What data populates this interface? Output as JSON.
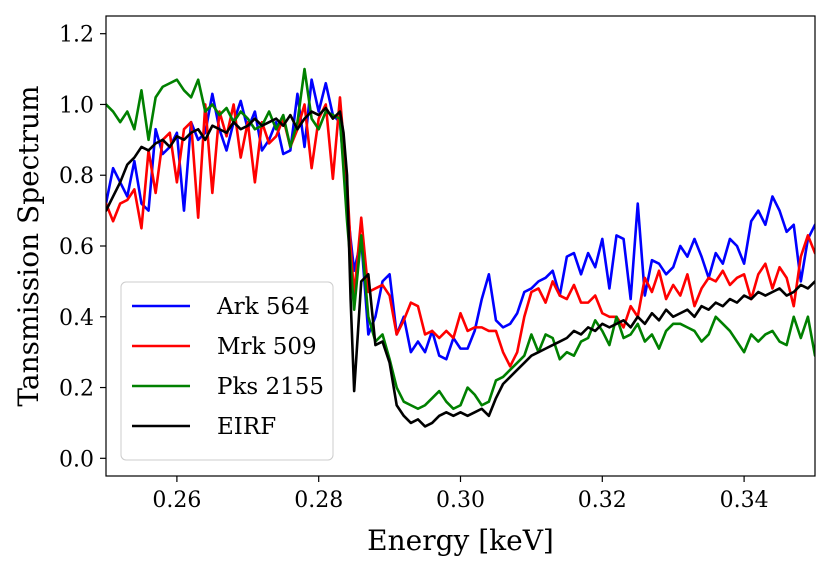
{
  "chart_data": {
    "type": "line",
    "title": "",
    "xlabel": "Energy [keV]",
    "ylabel": "Tansmission Spectrum",
    "xlim": [
      0.25,
      0.35
    ],
    "ylim": [
      -0.05,
      1.25
    ],
    "xticks": [
      0.26,
      0.28,
      0.3,
      0.32,
      0.34
    ],
    "xtick_labels": [
      "0.26",
      "0.28",
      "0.30",
      "0.32",
      "0.34"
    ],
    "yticks": [
      0.0,
      0.2,
      0.4,
      0.6,
      0.8,
      1.0,
      1.2
    ],
    "ytick_labels": [
      "0.0",
      "0.2",
      "0.4",
      "0.6",
      "0.8",
      "1.0",
      "1.2"
    ],
    "legend_position": "lower-left",
    "series": [
      {
        "name": "Ark 564",
        "color": "#0000ff",
        "x": [
          0.25,
          0.251,
          0.252,
          0.253,
          0.254,
          0.255,
          0.256,
          0.257,
          0.258,
          0.259,
          0.26,
          0.261,
          0.262,
          0.263,
          0.264,
          0.265,
          0.266,
          0.267,
          0.268,
          0.269,
          0.27,
          0.271,
          0.272,
          0.273,
          0.274,
          0.275,
          0.276,
          0.277,
          0.278,
          0.279,
          0.28,
          0.281,
          0.282,
          0.283,
          0.284,
          0.2845,
          0.285,
          0.286,
          0.287,
          0.288,
          0.289,
          0.29,
          0.291,
          0.292,
          0.293,
          0.294,
          0.295,
          0.296,
          0.297,
          0.298,
          0.299,
          0.3,
          0.301,
          0.302,
          0.303,
          0.304,
          0.305,
          0.306,
          0.307,
          0.308,
          0.309,
          0.31,
          0.311,
          0.312,
          0.313,
          0.314,
          0.315,
          0.316,
          0.317,
          0.318,
          0.319,
          0.32,
          0.321,
          0.322,
          0.323,
          0.324,
          0.325,
          0.326,
          0.327,
          0.328,
          0.329,
          0.33,
          0.331,
          0.332,
          0.333,
          0.334,
          0.335,
          0.336,
          0.337,
          0.338,
          0.339,
          0.34,
          0.341,
          0.342,
          0.343,
          0.344,
          0.345,
          0.346,
          0.347,
          0.348,
          0.349,
          0.35
        ],
        "y": [
          0.72,
          0.82,
          0.78,
          0.74,
          0.84,
          0.72,
          0.7,
          0.93,
          0.86,
          0.88,
          0.92,
          0.7,
          0.95,
          0.9,
          0.92,
          1.03,
          0.93,
          0.87,
          0.95,
          1.01,
          0.93,
          0.98,
          0.87,
          0.9,
          0.95,
          0.86,
          0.87,
          1.03,
          0.88,
          1.07,
          0.98,
          1.06,
          0.97,
          0.95,
          0.72,
          0.62,
          0.53,
          0.62,
          0.35,
          0.4,
          0.5,
          0.52,
          0.35,
          0.4,
          0.3,
          0.33,
          0.3,
          0.36,
          0.29,
          0.28,
          0.34,
          0.31,
          0.31,
          0.36,
          0.45,
          0.52,
          0.39,
          0.37,
          0.38,
          0.41,
          0.47,
          0.48,
          0.5,
          0.51,
          0.53,
          0.46,
          0.57,
          0.58,
          0.52,
          0.58,
          0.54,
          0.62,
          0.48,
          0.63,
          0.62,
          0.45,
          0.72,
          0.46,
          0.56,
          0.55,
          0.52,
          0.54,
          0.6,
          0.57,
          0.62,
          0.57,
          0.51,
          0.58,
          0.55,
          0.62,
          0.6,
          0.55,
          0.67,
          0.7,
          0.66,
          0.74,
          0.7,
          0.64,
          0.66,
          0.5,
          0.62,
          0.66
        ]
      },
      {
        "name": "Mrk 509",
        "color": "#ff0000",
        "x": [
          0.25,
          0.251,
          0.252,
          0.253,
          0.254,
          0.255,
          0.256,
          0.257,
          0.258,
          0.259,
          0.26,
          0.261,
          0.262,
          0.263,
          0.264,
          0.265,
          0.266,
          0.267,
          0.268,
          0.269,
          0.27,
          0.271,
          0.272,
          0.273,
          0.274,
          0.275,
          0.276,
          0.277,
          0.278,
          0.279,
          0.28,
          0.281,
          0.282,
          0.283,
          0.284,
          0.2845,
          0.285,
          0.286,
          0.287,
          0.288,
          0.289,
          0.29,
          0.291,
          0.292,
          0.293,
          0.294,
          0.295,
          0.296,
          0.297,
          0.298,
          0.299,
          0.3,
          0.301,
          0.302,
          0.303,
          0.304,
          0.305,
          0.306,
          0.307,
          0.308,
          0.309,
          0.31,
          0.311,
          0.312,
          0.313,
          0.314,
          0.315,
          0.316,
          0.317,
          0.318,
          0.319,
          0.32,
          0.321,
          0.322,
          0.323,
          0.324,
          0.325,
          0.326,
          0.327,
          0.328,
          0.329,
          0.33,
          0.331,
          0.332,
          0.333,
          0.334,
          0.335,
          0.336,
          0.337,
          0.338,
          0.339,
          0.34,
          0.341,
          0.342,
          0.343,
          0.344,
          0.345,
          0.346,
          0.347,
          0.348,
          0.349,
          0.35
        ],
        "y": [
          0.72,
          0.67,
          0.72,
          0.73,
          0.76,
          0.65,
          0.87,
          0.75,
          0.9,
          0.92,
          0.78,
          0.93,
          0.95,
          0.68,
          1.0,
          0.75,
          0.98,
          0.91,
          1.0,
          0.85,
          0.95,
          0.78,
          0.95,
          0.89,
          0.91,
          0.96,
          0.88,
          0.93,
          1.0,
          0.82,
          0.96,
          1.0,
          0.79,
          1.02,
          0.78,
          0.6,
          0.46,
          0.68,
          0.47,
          0.48,
          0.49,
          0.46,
          0.35,
          0.39,
          0.44,
          0.43,
          0.35,
          0.36,
          0.34,
          0.36,
          0.34,
          0.41,
          0.36,
          0.37,
          0.37,
          0.36,
          0.36,
          0.3,
          0.26,
          0.3,
          0.4,
          0.47,
          0.48,
          0.44,
          0.5,
          0.46,
          0.45,
          0.49,
          0.44,
          0.44,
          0.46,
          0.41,
          0.4,
          0.4,
          0.37,
          0.43,
          0.4,
          0.51,
          0.47,
          0.53,
          0.45,
          0.49,
          0.46,
          0.52,
          0.43,
          0.48,
          0.51,
          0.5,
          0.53,
          0.49,
          0.51,
          0.52,
          0.45,
          0.52,
          0.55,
          0.48,
          0.54,
          0.51,
          0.43,
          0.57,
          0.63,
          0.58
        ]
      },
      {
        "name": "Pks 2155",
        "color": "#008000",
        "x": [
          0.25,
          0.251,
          0.252,
          0.253,
          0.254,
          0.255,
          0.256,
          0.257,
          0.258,
          0.259,
          0.26,
          0.261,
          0.262,
          0.263,
          0.264,
          0.265,
          0.266,
          0.267,
          0.268,
          0.269,
          0.27,
          0.271,
          0.272,
          0.273,
          0.274,
          0.275,
          0.276,
          0.277,
          0.278,
          0.279,
          0.28,
          0.281,
          0.282,
          0.283,
          0.284,
          0.2845,
          0.285,
          0.286,
          0.287,
          0.288,
          0.289,
          0.29,
          0.291,
          0.292,
          0.293,
          0.294,
          0.295,
          0.296,
          0.297,
          0.298,
          0.299,
          0.3,
          0.301,
          0.302,
          0.303,
          0.304,
          0.305,
          0.306,
          0.307,
          0.308,
          0.309,
          0.31,
          0.311,
          0.312,
          0.313,
          0.314,
          0.315,
          0.316,
          0.317,
          0.318,
          0.319,
          0.32,
          0.321,
          0.322,
          0.323,
          0.324,
          0.325,
          0.326,
          0.327,
          0.328,
          0.329,
          0.33,
          0.331,
          0.332,
          0.333,
          0.334,
          0.335,
          0.336,
          0.337,
          0.338,
          0.339,
          0.34,
          0.341,
          0.342,
          0.343,
          0.344,
          0.345,
          0.346,
          0.347,
          0.348,
          0.349,
          0.35
        ],
        "y": [
          1.0,
          0.98,
          0.95,
          0.98,
          0.93,
          1.04,
          0.9,
          1.02,
          1.05,
          1.06,
          1.07,
          1.04,
          1.02,
          1.07,
          0.98,
          1.0,
          0.97,
          0.99,
          0.95,
          0.98,
          0.96,
          0.93,
          0.94,
          0.98,
          0.93,
          0.97,
          0.88,
          0.95,
          1.1,
          0.96,
          0.93,
          0.98,
          0.97,
          0.96,
          0.67,
          0.55,
          0.42,
          0.63,
          0.4,
          0.33,
          0.35,
          0.28,
          0.2,
          0.16,
          0.15,
          0.14,
          0.15,
          0.17,
          0.19,
          0.16,
          0.14,
          0.15,
          0.2,
          0.18,
          0.15,
          0.16,
          0.22,
          0.23,
          0.25,
          0.27,
          0.29,
          0.35,
          0.3,
          0.35,
          0.34,
          0.28,
          0.3,
          0.29,
          0.33,
          0.34,
          0.39,
          0.36,
          0.32,
          0.4,
          0.34,
          0.35,
          0.38,
          0.33,
          0.35,
          0.31,
          0.36,
          0.38,
          0.38,
          0.37,
          0.36,
          0.33,
          0.35,
          0.4,
          0.38,
          0.36,
          0.33,
          0.3,
          0.35,
          0.33,
          0.35,
          0.36,
          0.33,
          0.32,
          0.4,
          0.34,
          0.4,
          0.29
        ]
      },
      {
        "name": "EIRF",
        "color": "#000000",
        "x": [
          0.25,
          0.251,
          0.252,
          0.253,
          0.254,
          0.255,
          0.256,
          0.257,
          0.258,
          0.259,
          0.26,
          0.261,
          0.262,
          0.263,
          0.264,
          0.265,
          0.266,
          0.267,
          0.268,
          0.269,
          0.27,
          0.271,
          0.272,
          0.273,
          0.274,
          0.275,
          0.276,
          0.277,
          0.278,
          0.279,
          0.28,
          0.281,
          0.282,
          0.283,
          0.2835,
          0.284,
          0.2845,
          0.285,
          0.286,
          0.287,
          0.288,
          0.289,
          0.29,
          0.291,
          0.292,
          0.293,
          0.294,
          0.295,
          0.296,
          0.297,
          0.298,
          0.299,
          0.3,
          0.301,
          0.302,
          0.303,
          0.304,
          0.305,
          0.306,
          0.307,
          0.308,
          0.309,
          0.31,
          0.311,
          0.312,
          0.313,
          0.314,
          0.315,
          0.316,
          0.317,
          0.318,
          0.319,
          0.32,
          0.321,
          0.322,
          0.323,
          0.324,
          0.325,
          0.326,
          0.327,
          0.328,
          0.329,
          0.33,
          0.331,
          0.332,
          0.333,
          0.334,
          0.335,
          0.336,
          0.337,
          0.338,
          0.339,
          0.34,
          0.341,
          0.342,
          0.343,
          0.344,
          0.345,
          0.346,
          0.347,
          0.348,
          0.349,
          0.35
        ],
        "y": [
          0.7,
          0.74,
          0.78,
          0.83,
          0.85,
          0.88,
          0.87,
          0.89,
          0.9,
          0.88,
          0.91,
          0.9,
          0.92,
          0.93,
          0.9,
          0.94,
          0.93,
          0.92,
          0.95,
          0.93,
          0.94,
          0.96,
          0.94,
          0.95,
          0.96,
          0.94,
          0.97,
          0.93,
          0.96,
          0.98,
          0.97,
          0.99,
          0.96,
          0.98,
          0.92,
          0.8,
          0.45,
          0.19,
          0.5,
          0.52,
          0.32,
          0.33,
          0.27,
          0.15,
          0.12,
          0.1,
          0.11,
          0.09,
          0.1,
          0.12,
          0.13,
          0.12,
          0.13,
          0.12,
          0.13,
          0.14,
          0.12,
          0.17,
          0.21,
          0.23,
          0.25,
          0.27,
          0.29,
          0.3,
          0.31,
          0.32,
          0.33,
          0.34,
          0.36,
          0.35,
          0.37,
          0.36,
          0.38,
          0.37,
          0.38,
          0.39,
          0.37,
          0.4,
          0.38,
          0.41,
          0.39,
          0.42,
          0.4,
          0.41,
          0.42,
          0.4,
          0.43,
          0.42,
          0.44,
          0.43,
          0.45,
          0.44,
          0.46,
          0.45,
          0.47,
          0.46,
          0.47,
          0.48,
          0.46,
          0.47,
          0.49,
          0.48,
          0.5
        ]
      }
    ]
  }
}
